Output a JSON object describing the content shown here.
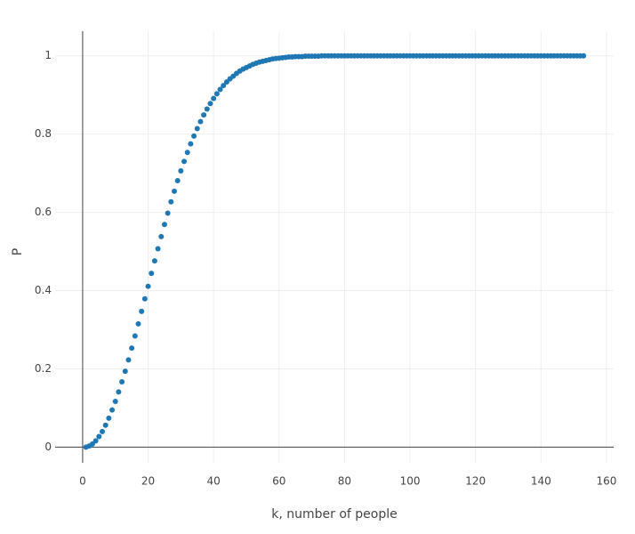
{
  "chart_data": {
    "type": "scatter",
    "x_label": "k, number of people",
    "y_label": "P",
    "color": "#1f77b4",
    "grid": true,
    "xlim": [
      -8.4,
      162.2
    ],
    "ylim": [
      -0.04,
      1.063
    ],
    "xticks": [
      0,
      20,
      40,
      60,
      80,
      100,
      120,
      140,
      160
    ],
    "yticks": [
      0,
      0.2,
      0.4,
      0.6,
      0.8,
      1
    ],
    "x": [
      1,
      2,
      3,
      4,
      5,
      6,
      7,
      8,
      9,
      10,
      11,
      12,
      13,
      14,
      15,
      16,
      17,
      18,
      19,
      20,
      21,
      22,
      23,
      24,
      25,
      26,
      27,
      28,
      29,
      30,
      31,
      32,
      33,
      34,
      35,
      36,
      37,
      38,
      39,
      40,
      41,
      42,
      43,
      44,
      45,
      46,
      47,
      48,
      49,
      50,
      51,
      52,
      53,
      54,
      55,
      56,
      57,
      58,
      59,
      60,
      61,
      62,
      63,
      64,
      65,
      66,
      67,
      68,
      69,
      70,
      71,
      72,
      73,
      74,
      75,
      76,
      77,
      78,
      79,
      80,
      81,
      82,
      83,
      84,
      85,
      86,
      87,
      88,
      89,
      90,
      91,
      92,
      93,
      94,
      95,
      96,
      97,
      98,
      99,
      100,
      101,
      102,
      103,
      104,
      105,
      106,
      107,
      108,
      109,
      110,
      111,
      112,
      113,
      114,
      115,
      116,
      117,
      118,
      119,
      120,
      121,
      122,
      123,
      124,
      125,
      126,
      127,
      128,
      129,
      130,
      131,
      132,
      133,
      134,
      135,
      136,
      137,
      138,
      139,
      140,
      141,
      142,
      143,
      144,
      145,
      146,
      147,
      148,
      149,
      150,
      151,
      152,
      153
    ],
    "values": [
      0,
      0.003,
      0.008,
      0.016,
      0.027,
      0.04,
      0.056,
      0.074,
      0.095,
      0.117,
      0.141,
      0.167,
      0.194,
      0.223,
      0.253,
      0.284,
      0.315,
      0.347,
      0.379,
      0.411,
      0.444,
      0.476,
      0.507,
      0.538,
      0.569,
      0.598,
      0.627,
      0.654,
      0.681,
      0.706,
      0.73,
      0.753,
      0.775,
      0.795,
      0.814,
      0.832,
      0.849,
      0.864,
      0.878,
      0.891,
      0.903,
      0.914,
      0.924,
      0.933,
      0.941,
      0.948,
      0.955,
      0.961,
      0.966,
      0.97,
      0.974,
      0.978,
      0.981,
      0.984,
      0.986,
      0.988,
      0.99,
      0.992,
      0.993,
      0.994,
      0.995,
      0.996,
      0.997,
      0.997,
      0.998,
      0.998,
      0.998,
      0.999,
      0.999,
      0.999,
      0.999,
      0.999,
      1,
      1,
      1,
      1,
      1,
      1,
      1,
      1,
      1,
      1,
      1,
      1,
      1,
      1,
      1,
      1,
      1,
      1,
      1,
      1,
      1,
      1,
      1,
      1,
      1,
      1,
      1,
      1,
      1,
      1,
      1,
      1,
      1,
      1,
      1,
      1,
      1,
      1,
      1,
      1,
      1,
      1,
      1,
      1,
      1,
      1,
      1,
      1,
      1,
      1,
      1,
      1,
      1,
      1,
      1,
      1,
      1,
      1,
      1,
      1,
      1,
      1,
      1,
      1,
      1,
      1,
      1,
      1,
      1,
      1,
      1,
      1,
      1,
      1,
      1,
      1,
      1,
      1,
      1,
      1,
      1
    ]
  }
}
